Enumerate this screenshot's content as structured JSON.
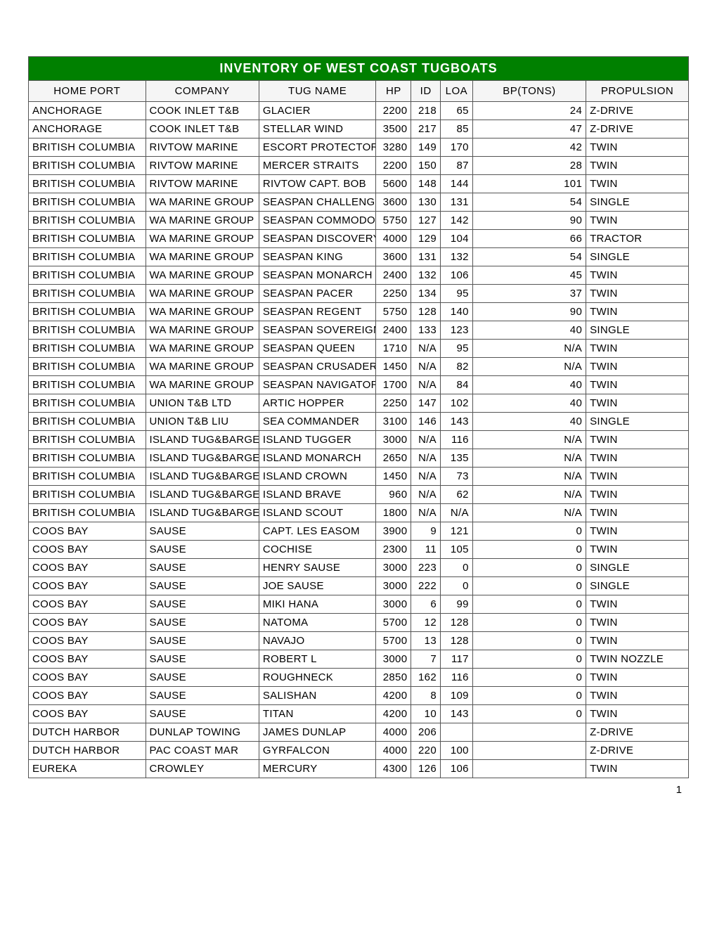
{
  "title": "INVENTORY OF  WEST  COAST TUGBOATS",
  "columns": [
    "HOME PORT",
    "COMPANY",
    "TUG NAME",
    "HP",
    "ID",
    "LOA",
    "BP(TONS)",
    "PROPULSION"
  ],
  "pageNumber": "1",
  "rows": [
    [
      "ANCHORAGE",
      "COOK INLET T&B",
      "GLACIER",
      "2200",
      "218",
      "65",
      "24",
      "Z-DRIVE"
    ],
    [
      "ANCHORAGE",
      "COOK INLET T&B",
      "STELLAR WIND",
      "3500",
      "217",
      "85",
      "47",
      "Z-DRIVE"
    ],
    [
      "BRITISH COLUMBIA",
      "RIVTOW MARINE",
      "ESCORT PROTECTOR",
      "3280",
      "149",
      "170",
      "42",
      "TWIN"
    ],
    [
      "BRITISH COLUMBIA",
      "RIVTOW MARINE",
      "MERCER STRAITS",
      "2200",
      "150",
      "87",
      "28",
      "TWIN"
    ],
    [
      "BRITISH COLUMBIA",
      "RIVTOW MARINE",
      "RIVTOW CAPT. BOB",
      "5600",
      "148",
      "144",
      "101",
      "TWIN"
    ],
    [
      "BRITISH COLUMBIA",
      "WA MARINE GROUP",
      "SEASPAN CHALLENGER",
      "3600",
      "130",
      "131",
      "54",
      "SINGLE"
    ],
    [
      "BRITISH COLUMBIA",
      "WA MARINE GROUP",
      "SEASPAN COMMODORE",
      "5750",
      "127",
      "142",
      "90",
      "TWIN"
    ],
    [
      "BRITISH COLUMBIA",
      "WA MARINE GROUP",
      "SEASPAN DISCOVERY",
      "4000",
      "129",
      "104",
      "66",
      "TRACTOR"
    ],
    [
      "BRITISH COLUMBIA",
      "WA MARINE GROUP",
      "SEASPAN KING",
      "3600",
      "131",
      "132",
      "54",
      "SINGLE"
    ],
    [
      "BRITISH COLUMBIA",
      "WA MARINE GROUP",
      "SEASPAN MONARCH",
      "2400",
      "132",
      "106",
      "45",
      "TWIN"
    ],
    [
      "BRITISH COLUMBIA",
      "WA MARINE GROUP",
      "SEASPAN PACER",
      "2250",
      "134",
      "95",
      "37",
      "TWIN"
    ],
    [
      "BRITISH COLUMBIA",
      "WA MARINE GROUP",
      "SEASPAN REGENT",
      "5750",
      "128",
      "140",
      "90",
      "TWIN"
    ],
    [
      "BRITISH COLUMBIA",
      "WA MARINE GROUP",
      "SEASPAN SOVEREIGN",
      "2400",
      "133",
      "123",
      "40",
      "SINGLE"
    ],
    [
      "BRITISH COLUMBIA",
      "WA MARINE GROUP",
      "SEASPAN QUEEN",
      "1710",
      "N/A",
      "95",
      "N/A",
      "TWIN"
    ],
    [
      "BRITISH COLUMBIA",
      "WA MARINE GROUP",
      "SEASPAN CRUSADER",
      "1450",
      "N/A",
      "82",
      "N/A",
      "TWIN"
    ],
    [
      "BRITISH COLUMBIA",
      "WA MARINE GROUP",
      "SEASPAN NAVIGATOR",
      "1700",
      "N/A",
      "84",
      "40",
      "TWIN"
    ],
    [
      "BRITISH COLUMBIA",
      "UNION T&B LTD",
      "ARTIC HOPPER",
      "2250",
      "147",
      "102",
      "40",
      "TWIN"
    ],
    [
      "BRITISH COLUMBIA",
      "UNION T&B LIU",
      "SEA COMMANDER",
      "3100",
      "146",
      "143",
      "40",
      "SINGLE"
    ],
    [
      "BRITISH COLUMBIA",
      "ISLAND TUG&BARGE LTD",
      "ISLAND TUGGER",
      "3000",
      "N/A",
      "116",
      "N/A",
      "TWIN"
    ],
    [
      "BRITISH COLUMBIA",
      "ISLAND TUG&BARGE LTD",
      "ISLAND MONARCH",
      "2650",
      "N/A",
      "135",
      "N/A",
      "TWIN"
    ],
    [
      "BRITISH COLUMBIA",
      "ISLAND TUG&BARGE LTD",
      "ISLAND CROWN",
      "1450",
      "N/A",
      "73",
      "N/A",
      "TWIN"
    ],
    [
      "BRITISH COLUMBIA",
      "ISLAND TUG&BARGE LTD",
      "ISLAND BRAVE",
      "960",
      "N/A",
      "62",
      "N/A",
      "TWIN"
    ],
    [
      "BRITISH COLUMBIA",
      "ISLAND TUG&BARGE LTD",
      "ISLAND SCOUT",
      "1800",
      "N/A",
      "N/A",
      "N/A",
      "TWIN"
    ],
    [
      "COOS BAY",
      "SAUSE",
      "CAPT. LES EASOM",
      "3900",
      "9",
      "121",
      "0",
      "TWIN"
    ],
    [
      "COOS BAY",
      "SAUSE",
      "COCHISE",
      "2300",
      "11",
      "105",
      "0",
      "TWIN"
    ],
    [
      "COOS BAY",
      "SAUSE",
      "HENRY SAUSE",
      "3000",
      "223",
      "0",
      "0",
      "SINGLE"
    ],
    [
      "COOS BAY",
      "SAUSE",
      "JOE SAUSE",
      "3000",
      "222",
      "0",
      "0",
      "SINGLE"
    ],
    [
      "COOS BAY",
      "SAUSE",
      "MIKI HANA",
      "3000",
      "6",
      "99",
      "0",
      "TWIN"
    ],
    [
      "COOS BAY",
      "SAUSE",
      "NATOMA",
      "5700",
      "12",
      "128",
      "0",
      "TWIN"
    ],
    [
      "COOS BAY",
      "SAUSE",
      "NAVAJO",
      "5700",
      "13",
      "128",
      "0",
      "TWIN"
    ],
    [
      "COOS BAY",
      "SAUSE",
      "ROBERT L",
      "3000",
      "7",
      "117",
      "0",
      "TWIN NOZZLE"
    ],
    [
      "COOS BAY",
      "SAUSE",
      "ROUGHNECK",
      "2850",
      "162",
      "116",
      "0",
      "TWIN"
    ],
    [
      "COOS BAY",
      "SAUSE",
      "SALISHAN",
      "4200",
      "8",
      "109",
      "0",
      "TWIN"
    ],
    [
      "COOS BAY",
      "SAUSE",
      "TITAN",
      "4200",
      "10",
      "143",
      "0",
      "TWIN"
    ],
    [
      "DUTCH HARBOR",
      "DUNLAP TOWING",
      "JAMES DUNLAP",
      "4000",
      "206",
      "",
      "",
      "Z-DRIVE"
    ],
    [
      "DUTCH HARBOR",
      "PAC COAST MAR",
      "GYRFALCON",
      "4000",
      "220",
      "100",
      "",
      "Z-DRIVE"
    ],
    [
      "EUREKA",
      "CROWLEY",
      "MERCURY",
      "4300",
      "126",
      "106",
      "",
      "TWIN"
    ]
  ]
}
